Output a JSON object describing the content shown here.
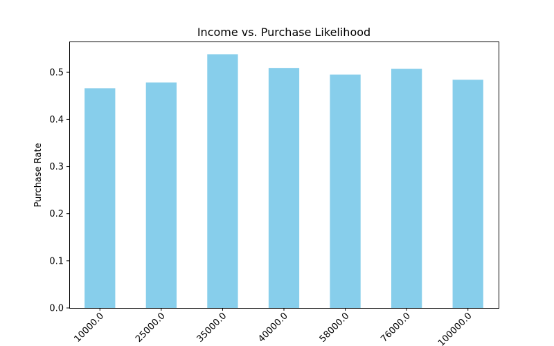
{
  "chart_data": {
    "type": "bar",
    "title": "Income vs. Purchase Likelihood",
    "xlabel": "",
    "ylabel": "Purchase Rate",
    "categories": [
      "10000.0",
      "25000.0",
      "35000.0",
      "40000.0",
      "58000.0",
      "76000.0",
      "100000.0"
    ],
    "values": [
      0.466,
      0.478,
      0.538,
      0.509,
      0.495,
      0.507,
      0.484
    ],
    "ylim": [
      0,
      0.565
    ],
    "yticks": [
      "0.0",
      "0.1",
      "0.2",
      "0.3",
      "0.4",
      "0.5"
    ],
    "bar_color": "#87ceeb",
    "grid": false,
    "legend": "none"
  }
}
